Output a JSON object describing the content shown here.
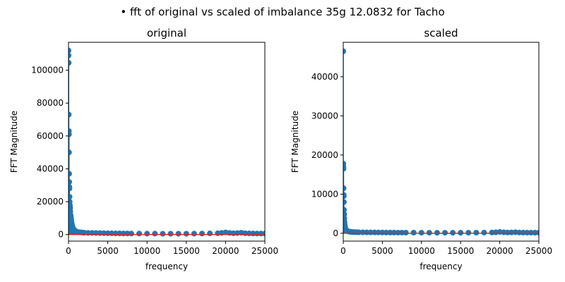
{
  "figure": {
    "suptitle": "• fft of original vs scaled of imbalance 35g 12.0832 for Tacho"
  },
  "colors": {
    "stem": "#1f77b4",
    "baseline": "#d62728"
  },
  "chart_data": [
    {
      "type": "scatter",
      "style": "stem",
      "title": "original",
      "xlabel": "frequency",
      "ylabel": "FFT Magnitude",
      "xlim": [
        0,
        25000
      ],
      "ylim": [
        -4000,
        117000
      ],
      "xticks": [
        0,
        5000,
        10000,
        15000,
        20000,
        25000
      ],
      "yticks": [
        0,
        20000,
        40000,
        60000,
        80000,
        100000
      ],
      "baseline": 0,
      "x": [
        0,
        12,
        24,
        36,
        48,
        60,
        72,
        84,
        96,
        108,
        120,
        135,
        150,
        170,
        190,
        210,
        230,
        260,
        290,
        320,
        360,
        400,
        450,
        500,
        560,
        620,
        700,
        800,
        900,
        1000,
        1200,
        1400,
        1600,
        1800,
        2000,
        2500,
        3000,
        3500,
        4000,
        4500,
        5000,
        5500,
        6000,
        6500,
        7000,
        7500,
        8000,
        9000,
        10000,
        11000,
        12000,
        13000,
        14000,
        15000,
        16000,
        17000,
        18000,
        19000,
        19500,
        20000,
        20500,
        21000,
        21500,
        22000,
        22500,
        23000,
        23500,
        24000,
        24500,
        25000
      ],
      "y": [
        112000,
        109000,
        104500,
        73000,
        63000,
        61000,
        50000,
        37000,
        32000,
        29000,
        28000,
        23000,
        20000,
        18000,
        17000,
        16000,
        14000,
        12000,
        11000,
        10000,
        8500,
        7000,
        6000,
        5000,
        4000,
        3500,
        3000,
        2500,
        2000,
        1800,
        1500,
        1400,
        1300,
        1200,
        1100,
        1000,
        1000,
        950,
        900,
        850,
        800,
        750,
        700,
        700,
        650,
        650,
        600,
        600,
        550,
        550,
        500,
        500,
        500,
        500,
        550,
        600,
        700,
        800,
        1000,
        1300,
        1000,
        800,
        900,
        1100,
        800,
        700,
        650,
        600,
        600,
        600
      ]
    },
    {
      "type": "scatter",
      "style": "stem",
      "title": "scaled",
      "xlabel": "frequency",
      "ylabel": "FFT Magnitude",
      "xlim": [
        0,
        25000
      ],
      "ylim": [
        -2000,
        48800
      ],
      "xticks": [
        0,
        5000,
        10000,
        15000,
        20000,
        25000
      ],
      "yticks": [
        0,
        10000,
        20000,
        30000,
        40000
      ],
      "baseline": 0,
      "x": [
        0,
        12,
        24,
        36,
        48,
        60,
        72,
        84,
        96,
        108,
        120,
        135,
        150,
        170,
        190,
        210,
        230,
        260,
        290,
        320,
        360,
        400,
        450,
        500,
        560,
        620,
        700,
        800,
        900,
        1000,
        1200,
        1400,
        1600,
        1800,
        2000,
        2500,
        3000,
        3500,
        4000,
        4500,
        5000,
        5500,
        6000,
        6500,
        7000,
        7500,
        8000,
        9000,
        10000,
        11000,
        12000,
        13000,
        14000,
        15000,
        16000,
        17000,
        18000,
        19000,
        19500,
        20000,
        20500,
        21000,
        21500,
        22000,
        22500,
        23000,
        23500,
        24000,
        24500,
        25000
      ],
      "y": [
        46500,
        17800,
        17000,
        16500,
        11500,
        9800,
        9500,
        8000,
        6000,
        5000,
        4800,
        3800,
        3000,
        2500,
        2200,
        1900,
        1600,
        1300,
        1100,
        1000,
        900,
        800,
        700,
        600,
        550,
        500,
        450,
        400,
        380,
        350,
        320,
        300,
        280,
        270,
        260,
        250,
        240,
        230,
        220,
        210,
        200,
        190,
        180,
        180,
        170,
        170,
        160,
        160,
        150,
        150,
        140,
        140,
        140,
        140,
        150,
        160,
        180,
        200,
        250,
        350,
        250,
        200,
        220,
        280,
        200,
        180,
        170,
        160,
        160,
        160
      ]
    }
  ]
}
